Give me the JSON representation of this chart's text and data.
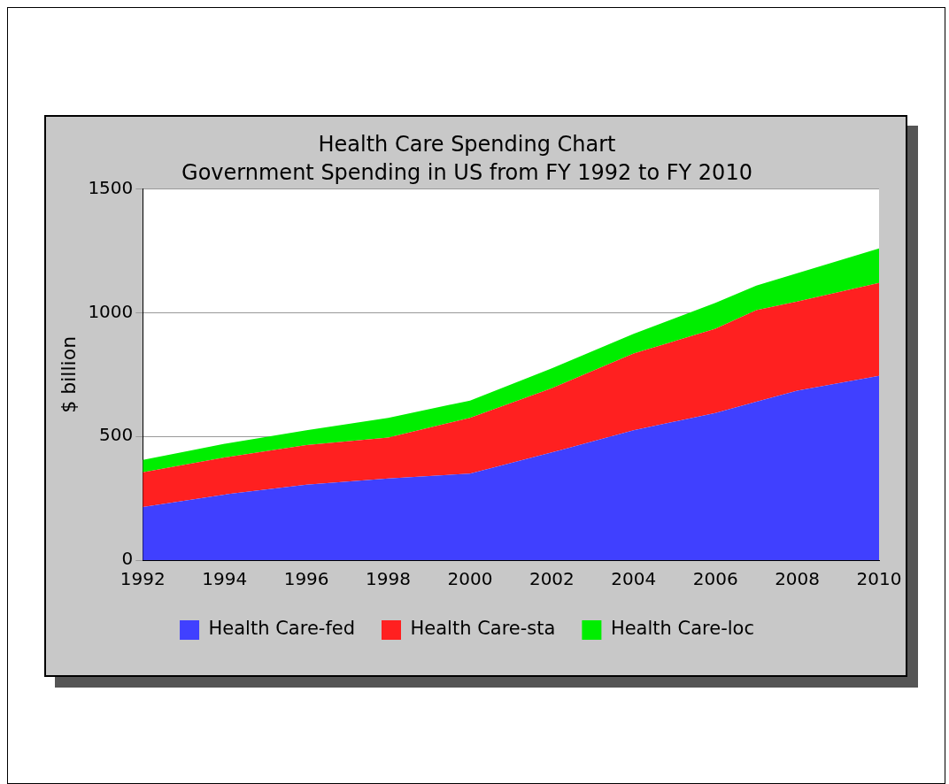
{
  "chart_data": {
    "type": "area",
    "title": "Health Care Spending Chart",
    "subtitle": "Government Spending in US from FY 1992 to FY 2010",
    "ylabel": "$ billion",
    "x": [
      1992,
      1994,
      1996,
      1998,
      2000,
      2002,
      2004,
      2006,
      2007,
      2008,
      2010
    ],
    "stacked": true,
    "series": [
      {
        "name": "Health Care-fed",
        "color": "#4040ff",
        "values": [
          215,
          265,
          305,
          330,
          350,
          435,
          525,
          595,
          640,
          685,
          745
        ]
      },
      {
        "name": "Health Care-sta",
        "color": "#ff2020",
        "values": [
          140,
          150,
          160,
          165,
          225,
          260,
          310,
          340,
          370,
          360,
          375
        ]
      },
      {
        "name": "Health Care-loc",
        "color": "#00ee00",
        "values": [
          50,
          55,
          60,
          80,
          70,
          80,
          80,
          105,
          100,
          115,
          140
        ]
      }
    ],
    "xlim": [
      1992,
      2010
    ],
    "xticks": [
      1992,
      1994,
      1996,
      1998,
      2000,
      2002,
      2004,
      2006,
      2008,
      2010
    ],
    "ylim": [
      0,
      1500
    ],
    "yticks": [
      0,
      500,
      1000,
      1500
    ],
    "grid": "y",
    "legend": "bottom"
  }
}
